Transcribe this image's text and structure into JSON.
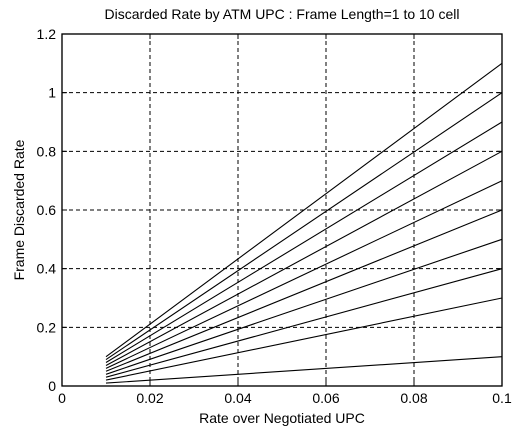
{
  "chart_data": {
    "type": "line",
    "title": "Discarded Rate by ATM UPC : Frame Length=1 to 10 cell",
    "xlabel": "Rate over Negotiated UPC",
    "ylabel": "Frame Discarded Rate",
    "xlim": [
      0,
      0.1
    ],
    "ylim": [
      0,
      1.2
    ],
    "x_ticks": [
      "0",
      "0.02",
      "0.04",
      "0.06",
      "0.08",
      "0.1"
    ],
    "y_ticks": [
      "0",
      "0.2",
      "0.4",
      "0.6",
      "0.8",
      "1",
      "1.2"
    ],
    "grid": true,
    "x": [
      0.01,
      0.1
    ],
    "series": [
      {
        "values": [
          0.01,
          0.1
        ]
      },
      {
        "values": [
          0.02,
          0.3
        ]
      },
      {
        "values": [
          0.03,
          0.4
        ]
      },
      {
        "values": [
          0.04,
          0.5
        ]
      },
      {
        "values": [
          0.05,
          0.6
        ]
      },
      {
        "values": [
          0.06,
          0.7
        ]
      },
      {
        "values": [
          0.07,
          0.8
        ]
      },
      {
        "values": [
          0.08,
          0.9
        ]
      },
      {
        "values": [
          0.09,
          1.0
        ]
      },
      {
        "values": [
          0.1,
          1.1
        ]
      }
    ]
  }
}
